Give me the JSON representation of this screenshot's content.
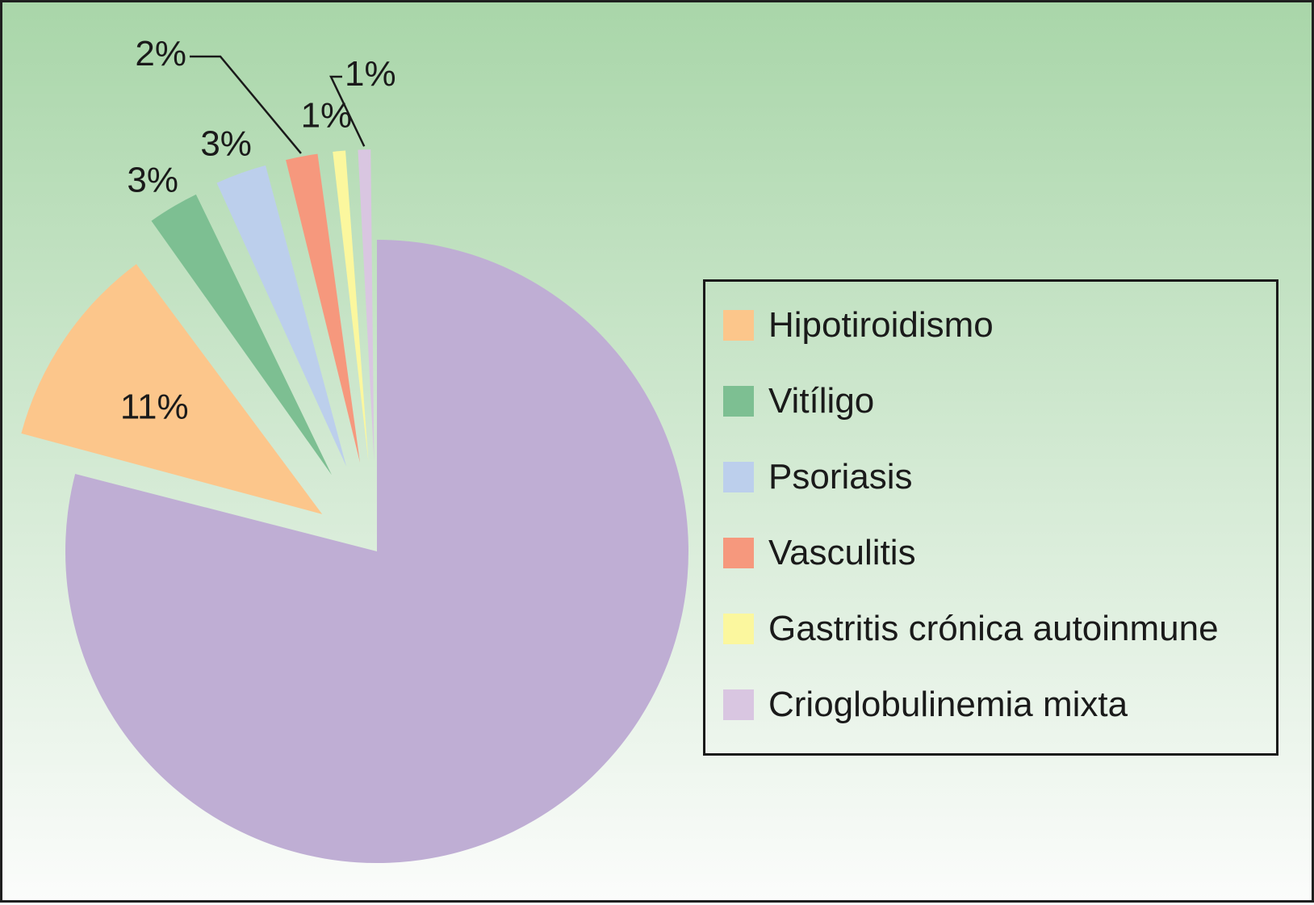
{
  "chart_data": {
    "type": "pie",
    "title": "",
    "slices": [
      {
        "value": 79,
        "label": "",
        "color": "#bfaed4"
      },
      {
        "value": 11,
        "label": "11%",
        "name": "Hipotiroidismo",
        "color": "#fcc68b"
      },
      {
        "value": 3,
        "label": "3%",
        "name": "Vitíligo",
        "color": "#7dbf92"
      },
      {
        "value": 3,
        "label": "3%",
        "name": "Psoriasis",
        "color": "#bccfec"
      },
      {
        "value": 2,
        "label": "2%",
        "name": "Vasculitis",
        "color": "#f6987d"
      },
      {
        "value": 1,
        "label": "1%",
        "name": "Gastritis crónica autoinmune",
        "color": "#fbf79e"
      },
      {
        "value": 1,
        "label": "1%",
        "name": "Crioglobulinemia mixta",
        "color": "#d9c6e1"
      }
    ],
    "legend": {
      "position": "right",
      "entries": [
        {
          "name": "Hipotiroidismo",
          "color": "#fcc68b"
        },
        {
          "name": "Vitíligo",
          "color": "#7dbf92"
        },
        {
          "name": "Psoriasis",
          "color": "#bccfec"
        },
        {
          "name": "Vasculitis",
          "color": "#f6987d"
        },
        {
          "name": "Gastritis crónica autoinmune",
          "color": "#fbf79e"
        },
        {
          "name": "Crioglobulinemia mixta",
          "color": "#d9c6e1"
        }
      ]
    }
  }
}
